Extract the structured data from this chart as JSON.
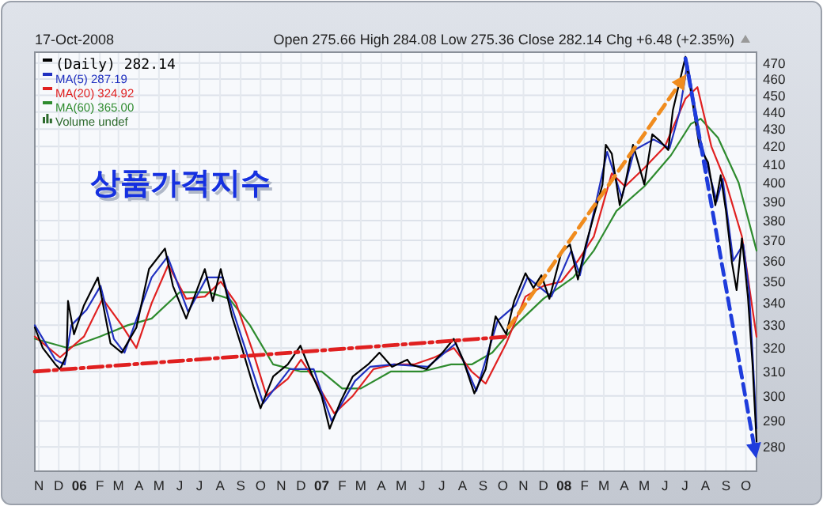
{
  "chart_data": {
    "type": "line",
    "title": "상품가격지수",
    "subtitle": "17-Oct-2008",
    "annotations": [
      "Open 275.66 High 284.08 Low 275.36 Close 282.14 Chg +6.48 (+2.35%)",
      "Volume undef"
    ],
    "log": true,
    "grid": true,
    "legend": "top left",
    "xlim": [
      "2005-10-26",
      "2008-10-17"
    ],
    "ylim": [
      271,
      477
    ],
    "yticks": [
      280,
      290,
      300,
      310,
      320,
      330,
      340,
      350,
      360,
      370,
      380,
      390,
      400,
      410,
      420,
      430,
      440,
      450,
      460,
      470
    ],
    "xticks": [
      {
        "value": "2005-11-01",
        "label": "N"
      },
      {
        "value": "2005-12-01",
        "label": "D"
      },
      {
        "value": "2006-01-01",
        "label": "06"
      },
      {
        "value": "2006-02-01",
        "label": "F"
      },
      {
        "value": "2006-03-01",
        "label": "M"
      },
      {
        "value": "2006-04-01",
        "label": "A"
      },
      {
        "value": "2006-05-01",
        "label": "M"
      },
      {
        "value": "2006-06-01",
        "label": "J"
      },
      {
        "value": "2006-07-01",
        "label": "J"
      },
      {
        "value": "2006-08-01",
        "label": "A"
      },
      {
        "value": "2006-09-01",
        "label": "S"
      },
      {
        "value": "2006-10-01",
        "label": "O"
      },
      {
        "value": "2006-11-01",
        "label": "N"
      },
      {
        "value": "2006-12-01",
        "label": "D"
      },
      {
        "value": "2007-01-01",
        "label": "07"
      },
      {
        "value": "2007-02-01",
        "label": "F"
      },
      {
        "value": "2007-03-01",
        "label": "M"
      },
      {
        "value": "2007-04-01",
        "label": "A"
      },
      {
        "value": "2007-05-01",
        "label": "M"
      },
      {
        "value": "2007-06-01",
        "label": "J"
      },
      {
        "value": "2007-07-01",
        "label": "J"
      },
      {
        "value": "2007-08-01",
        "label": "A"
      },
      {
        "value": "2007-09-01",
        "label": "S"
      },
      {
        "value": "2007-10-01",
        "label": "O"
      },
      {
        "value": "2007-11-01",
        "label": "N"
      },
      {
        "value": "2007-12-01",
        "label": "D"
      },
      {
        "value": "2008-01-01",
        "label": "08"
      },
      {
        "value": "2008-02-01",
        "label": "F"
      },
      {
        "value": "2008-03-01",
        "label": "M"
      },
      {
        "value": "2008-04-01",
        "label": "A"
      },
      {
        "value": "2008-05-01",
        "label": "M"
      },
      {
        "value": "2008-06-01",
        "label": "J"
      },
      {
        "value": "2008-07-01",
        "label": "J"
      },
      {
        "value": "2008-08-01",
        "label": "A"
      },
      {
        "value": "2008-09-01",
        "label": "S"
      },
      {
        "value": "2008-10-01",
        "label": "O"
      }
    ],
    "series": [
      {
        "name": "MA(60) 365.00",
        "color": "#2e8b2e",
        "line_style": "solid",
        "x": [
          "2005-10-26",
          "2005-12-15",
          "2006-02-01",
          "2006-03-15",
          "2006-04-20",
          "2006-06-01",
          "2006-07-15",
          "2006-08-15",
          "2006-09-15",
          "2006-10-20",
          "2006-12-01",
          "2007-01-01",
          "2007-02-01",
          "2007-03-01",
          "2007-04-15",
          "2007-06-01",
          "2007-07-15",
          "2007-08-15",
          "2007-09-15",
          "2007-10-20",
          "2007-12-01",
          "2008-01-15",
          "2008-02-15",
          "2008-03-20",
          "2008-05-01",
          "2008-06-10",
          "2008-07-10",
          "2008-07-25",
          "2008-08-20",
          "2008-09-20",
          "2008-10-17"
        ],
        "values": [
          324,
          320,
          325,
          330,
          333,
          345,
          345,
          342,
          330,
          313,
          310,
          310,
          303,
          303,
          310,
          310,
          313,
          313,
          318,
          330,
          342,
          352,
          365,
          385,
          398,
          415,
          433,
          436,
          425,
          400,
          365.0
        ]
      },
      {
        "name": "MA(20) 324.92",
        "color": "#e02020",
        "line_style": "solid",
        "x": [
          "2005-10-26",
          "2005-12-03",
          "2006-01-08",
          "2006-02-05",
          "2006-03-06",
          "2006-03-28",
          "2006-04-20",
          "2006-05-15",
          "2006-06-11",
          "2006-07-09",
          "2006-08-02",
          "2006-08-25",
          "2006-09-20",
          "2006-10-10",
          "2006-11-11",
          "2006-12-01",
          "2006-12-25",
          "2007-01-20",
          "2007-02-17",
          "2007-03-20",
          "2007-04-20",
          "2007-05-20",
          "2007-06-20",
          "2007-07-19",
          "2007-08-15",
          "2007-09-05",
          "2007-10-06",
          "2007-11-04",
          "2007-12-01",
          "2007-12-28",
          "2008-01-22",
          "2008-02-15",
          "2008-03-13",
          "2008-04-02",
          "2008-05-01",
          "2008-06-01",
          "2008-07-02",
          "2008-07-20",
          "2008-08-10",
          "2008-09-01",
          "2008-09-25",
          "2008-10-17"
        ],
        "values": [
          325,
          316,
          325,
          342,
          330,
          320,
          340,
          358,
          342,
          343,
          350,
          340,
          318,
          300,
          307,
          315,
          305,
          293,
          300,
          311,
          313,
          313,
          316,
          320,
          310,
          305,
          322,
          343,
          348,
          350,
          360,
          372,
          405,
          398,
          408,
          420,
          448,
          455,
          420,
          400,
          372,
          324.92
        ]
      },
      {
        "name": "MA(5) 287.19",
        "color": "#2030c0",
        "line_style": "solid",
        "x": [
          "2005-10-26",
          "2005-11-26",
          "2005-12-10",
          "2005-12-20",
          "2006-01-12",
          "2006-02-02",
          "2006-02-22",
          "2006-03-10",
          "2006-04-20",
          "2006-05-14",
          "2006-06-14",
          "2006-07-12",
          "2006-08-05",
          "2006-08-22",
          "2006-09-24",
          "2006-10-05",
          "2006-11-14",
          "2006-12-20",
          "2007-01-16",
          "2007-02-20",
          "2007-03-15",
          "2007-04-20",
          "2007-06-10",
          "2007-07-22",
          "2007-08-22",
          "2007-09-23",
          "2007-10-20",
          "2007-11-07",
          "2007-12-13",
          "2008-01-12",
          "2008-01-25",
          "2008-03-06",
          "2008-03-28",
          "2008-04-16",
          "2008-05-15",
          "2008-06-08",
          "2008-06-23",
          "2008-07-05",
          "2008-07-25",
          "2008-08-18",
          "2008-08-27",
          "2008-09-12",
          "2008-09-27",
          "2008-10-06",
          "2008-10-17"
        ],
        "values": [
          330,
          315,
          313,
          330,
          337,
          348,
          324,
          318,
          352,
          362,
          336,
          352,
          352,
          335,
          306,
          297,
          311,
          311,
          290,
          306,
          312,
          313,
          312,
          322,
          302,
          332,
          339,
          352,
          343,
          365,
          353,
          417,
          392,
          418,
          424,
          419,
          440,
          470,
          423,
          390,
          402,
          360,
          368,
          345,
          287.19
        ]
      },
      {
        "name": "(Daily) 282.14",
        "color": "#000000",
        "line_style": "solid",
        "x": [
          "2005-10-26",
          "2005-11-07",
          "2005-11-26",
          "2005-12-03",
          "2005-12-13",
          "2005-12-15",
          "2005-12-24",
          "2006-01-08",
          "2006-01-29",
          "2006-02-17",
          "2006-03-06",
          "2006-03-28",
          "2006-04-16",
          "2006-05-10",
          "2006-05-22",
          "2006-06-11",
          "2006-07-09",
          "2006-07-21",
          "2006-08-02",
          "2006-08-19",
          "2006-09-03",
          "2006-09-20",
          "2006-10-01",
          "2006-10-20",
          "2006-11-11",
          "2006-11-30",
          "2006-12-17",
          "2007-01-01",
          "2007-01-13",
          "2007-01-30",
          "2007-02-17",
          "2007-03-12",
          "2007-03-29",
          "2007-04-17",
          "2007-05-10",
          "2007-05-15",
          "2007-06-08",
          "2007-07-02",
          "2007-07-19",
          "2007-08-02",
          "2007-08-19",
          "2007-09-05",
          "2007-09-20",
          "2007-10-06",
          "2007-10-18",
          "2007-11-04",
          "2007-11-16",
          "2007-11-28",
          "2007-12-10",
          "2007-12-28",
          "2008-01-10",
          "2008-01-22",
          "2008-02-03",
          "2008-02-28",
          "2008-03-04",
          "2008-03-13",
          "2008-03-25",
          "2008-04-02",
          "2008-04-14",
          "2008-05-01",
          "2008-05-13",
          "2008-05-25",
          "2008-06-06",
          "2008-06-13",
          "2008-06-20",
          "2008-07-02",
          "2008-07-11",
          "2008-07-23",
          "2008-08-05",
          "2008-08-16",
          "2008-08-24",
          "2008-09-01",
          "2008-09-10",
          "2008-09-17",
          "2008-09-25",
          "2008-10-04",
          "2008-10-11",
          "2008-10-15",
          "2008-10-17"
        ],
        "values": [
          329,
          320,
          313,
          311,
          317,
          341,
          326,
          339,
          352,
          322,
          318,
          329,
          356,
          366,
          348,
          333,
          356,
          341,
          356,
          334,
          320,
          304,
          295,
          308,
          313,
          321,
          309,
          300,
          287,
          298,
          308,
          313,
          318,
          312,
          315,
          313,
          311,
          318,
          324,
          315,
          301,
          311,
          334,
          326,
          341,
          354,
          347,
          353,
          342,
          364,
          368,
          351,
          368,
          399,
          421,
          416,
          388,
          399,
          421,
          399,
          427,
          423,
          418,
          441,
          453,
          474,
          450,
          420,
          411,
          388,
          404,
          385,
          359,
          346,
          371,
          343,
          313,
          292,
          282.14
        ]
      },
      {
        "color": "#e02020",
        "line_style": "dashdot",
        "x": [
          "2005-10-26",
          "2007-10-10"
        ],
        "values": [
          310,
          325
        ]
      },
      {
        "color": "#f08c1e",
        "line_style": "dashed",
        "x": [
          "2007-10-10",
          "2008-06-28"
        ],
        "values": [
          329,
          460
        ]
      },
      {
        "color": "#1e3cdc",
        "line_style": "dashed",
        "x": [
          "2008-07-02",
          "2008-10-15"
        ],
        "values": [
          473,
          278
        ]
      }
    ]
  }
}
